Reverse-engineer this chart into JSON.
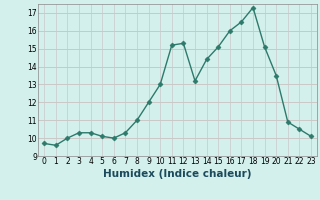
{
  "xlabel": "Humidex (Indice chaleur)",
  "x": [
    0,
    1,
    2,
    3,
    4,
    5,
    6,
    7,
    8,
    9,
    10,
    11,
    12,
    13,
    14,
    15,
    16,
    17,
    18,
    19,
    20,
    21,
    22,
    23
  ],
  "y": [
    9.7,
    9.6,
    10.0,
    10.3,
    10.3,
    10.1,
    10.0,
    10.3,
    11.0,
    12.0,
    13.0,
    15.2,
    15.3,
    13.2,
    14.4,
    15.1,
    16.0,
    16.5,
    17.3,
    15.1,
    13.5,
    10.9,
    10.5,
    10.1
  ],
  "line_color": "#2d7a6b",
  "marker": "D",
  "marker_size": 2.5,
  "background_color": "#d4f0ec",
  "grid_color_h": "#c8b8b8",
  "grid_color_v": "#c8c8c8",
  "xlim": [
    -0.5,
    23.5
  ],
  "ylim": [
    9.0,
    17.5
  ],
  "yticks": [
    9,
    10,
    11,
    12,
    13,
    14,
    15,
    16,
    17
  ],
  "xticks": [
    0,
    1,
    2,
    3,
    4,
    5,
    6,
    7,
    8,
    9,
    10,
    11,
    12,
    13,
    14,
    15,
    16,
    17,
    18,
    19,
    20,
    21,
    22,
    23
  ],
  "tick_fontsize": 5.5,
  "xlabel_fontsize": 7.5,
  "line_width": 1.0
}
